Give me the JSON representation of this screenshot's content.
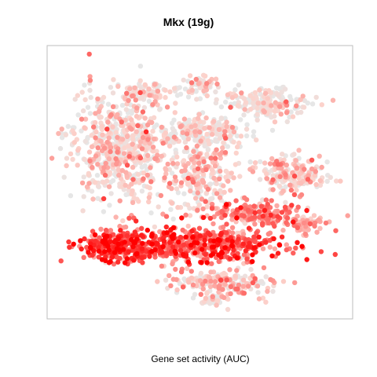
{
  "chart_data": {
    "type": "scatter",
    "title": "Mkx (19g)",
    "xlabel": "Gene set activity (AUC)",
    "ylabel": "",
    "axes_visible": false,
    "grid": false,
    "legend": "none",
    "xlim": [
      0,
      100
    ],
    "ylim": [
      0,
      100
    ],
    "colors": {
      "low": "#e6e6e6",
      "mid": "#fcd3cc",
      "high": "#ff0000"
    },
    "clusters": [
      {
        "name": "",
        "cx": 50,
        "cy": 27,
        "rx": 26,
        "ry": 6,
        "n": 520,
        "activity": 0.68
      },
      {
        "name": "",
        "cx": 24,
        "cy": 27,
        "rx": 11,
        "ry": 5,
        "n": 260,
        "activity": 0.76
      },
      {
        "name": "",
        "cx": 69,
        "cy": 38,
        "rx": 14,
        "ry": 4,
        "n": 200,
        "activity": 0.55
      },
      {
        "name": "",
        "cx": 24,
        "cy": 63,
        "rx": 16,
        "ry": 17,
        "n": 620,
        "activity": 0.2
      },
      {
        "name": "",
        "cx": 50,
        "cy": 51,
        "rx": 10,
        "ry": 11,
        "n": 240,
        "activity": 0.24
      },
      {
        "name": "",
        "cx": 80,
        "cy": 53,
        "rx": 10,
        "ry": 6,
        "n": 200,
        "activity": 0.24
      },
      {
        "name": "",
        "cx": 52,
        "cy": 68,
        "rx": 13,
        "ry": 5,
        "n": 190,
        "activity": 0.07
      },
      {
        "name": "",
        "cx": 72,
        "cy": 79,
        "rx": 12,
        "ry": 5,
        "n": 190,
        "activity": 0.11
      },
      {
        "name": "",
        "cx": 33,
        "cy": 83,
        "rx": 7,
        "ry": 3,
        "n": 80,
        "activity": 0.12
      },
      {
        "name": "",
        "cx": 50,
        "cy": 85,
        "rx": 5,
        "ry": 4,
        "n": 60,
        "activity": 0.1
      },
      {
        "name": "",
        "cx": 58,
        "cy": 13,
        "rx": 16,
        "ry": 4,
        "n": 200,
        "activity": 0.26
      },
      {
        "name": "",
        "cx": 55,
        "cy": 7,
        "rx": 5,
        "ry": 2,
        "n": 50,
        "activity": 0.05
      },
      {
        "name": "",
        "cx": 85,
        "cy": 35,
        "rx": 6,
        "ry": 3,
        "n": 60,
        "activity": 0.3
      }
    ]
  }
}
